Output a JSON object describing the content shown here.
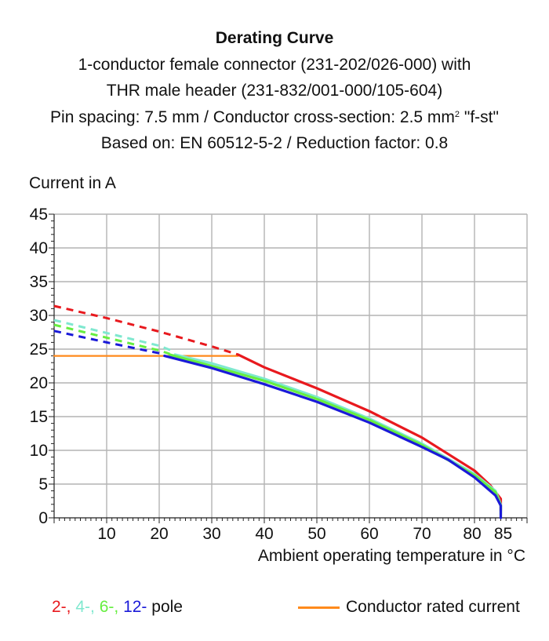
{
  "colors": {
    "pole2": "#e8191e",
    "pole4": "#7fe8cf",
    "pole6": "#66ee40",
    "pole12": "#1a1ad8",
    "rated": "#ff8a1c",
    "grid": "#b4b4b4"
  },
  "chart_data": {
    "type": "line",
    "title": "Derating Curve",
    "subtitle_lines": [
      "1-conductor female connector (231-202/026-000) with",
      "THR male header (231-832/001-000/105-604)",
      "Pin spacing: 7.5 mm / Conductor cross-section: 2.5 mm",
      "2",
      " \"f-st\"",
      "Based on: EN 60512-5-2 / Reduction factor: 0.8"
    ],
    "xlabel": "Ambient operating temperature in °C",
    "ylabel": "Current in A",
    "xlim": [
      0,
      90
    ],
    "ylim": [
      0,
      45
    ],
    "xticks": [
      10,
      20,
      30,
      40,
      50,
      60,
      70,
      80,
      85
    ],
    "yticks": [
      0,
      5,
      10,
      15,
      20,
      25,
      30,
      35,
      40,
      45
    ],
    "grid": true,
    "series": [
      {
        "name": "2-",
        "color_key": "pole2",
        "dashed": {
          "x": [
            0,
            10,
            20,
            30,
            35
          ],
          "y": [
            31.4,
            29.6,
            27.6,
            25.4,
            24.2
          ]
        },
        "solid": {
          "x": [
            35,
            40,
            50,
            60,
            70,
            80,
            83,
            85,
            85
          ],
          "y": [
            24.2,
            22.3,
            19.2,
            15.8,
            11.9,
            7.0,
            4.8,
            2.8,
            1.0
          ]
        }
      },
      {
        "name": "4-",
        "color_key": "pole4",
        "dashed": {
          "x": [
            0,
            10,
            20,
            23
          ],
          "y": [
            29.3,
            27.4,
            25.5,
            24.6
          ]
        },
        "solid": {
          "x": [
            23,
            30,
            40,
            50,
            60,
            70,
            80,
            84,
            85,
            85
          ],
          "y": [
            24.2,
            22.9,
            20.6,
            17.9,
            14.7,
            11.0,
            6.5,
            4.0,
            2.0,
            0.6
          ]
        }
      },
      {
        "name": "6-",
        "color_key": "pole6",
        "dashed": {
          "x": [
            0,
            10,
            20,
            22
          ],
          "y": [
            28.6,
            26.7,
            24.8,
            24.3
          ]
        },
        "solid": {
          "x": [
            22,
            30,
            40,
            50,
            60,
            70,
            80,
            84,
            85,
            85
          ],
          "y": [
            24.2,
            22.5,
            20.3,
            17.6,
            14.5,
            10.8,
            6.3,
            3.8,
            1.8,
            0.4
          ]
        }
      },
      {
        "name": "12-",
        "color_key": "pole12",
        "dashed": {
          "x": [
            0,
            10,
            20,
            21
          ],
          "y": [
            27.7,
            26.0,
            24.4,
            24.1
          ]
        },
        "solid": {
          "x": [
            21,
            30,
            35,
            40,
            50,
            60,
            70,
            75,
            80,
            84,
            85,
            85
          ],
          "y": [
            24.0,
            22.2,
            21.0,
            19.8,
            17.2,
            14.1,
            10.5,
            8.6,
            6.0,
            3.3,
            1.8,
            0.0
          ]
        }
      },
      {
        "name": "Conductor rated current",
        "color_key": "rated",
        "solid": {
          "x": [
            0,
            35
          ],
          "y": [
            24.0,
            24.0
          ]
        }
      }
    ]
  },
  "legend": {
    "pole2": "2-,",
    "pole4": "4-,",
    "pole6": "6-,",
    "pole12": "12-",
    "pole_suffix": "pole",
    "rated": "Conductor rated current"
  }
}
